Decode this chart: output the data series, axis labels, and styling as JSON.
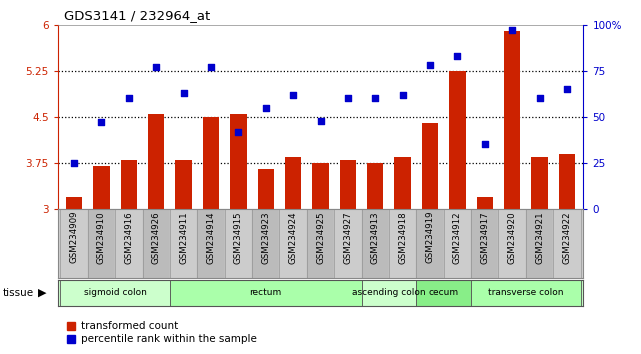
{
  "title": "GDS3141 / 232964_at",
  "samples": [
    "GSM234909",
    "GSM234910",
    "GSM234916",
    "GSM234926",
    "GSM234911",
    "GSM234914",
    "GSM234915",
    "GSM234923",
    "GSM234924",
    "GSM234925",
    "GSM234927",
    "GSM234913",
    "GSM234918",
    "GSM234919",
    "GSM234912",
    "GSM234917",
    "GSM234920",
    "GSM234921",
    "GSM234922"
  ],
  "bar_values": [
    3.2,
    3.7,
    3.8,
    4.55,
    3.8,
    4.5,
    4.55,
    3.65,
    3.85,
    3.75,
    3.8,
    3.75,
    3.85,
    4.4,
    5.25,
    3.2,
    5.9,
    3.85,
    3.9
  ],
  "dot_values": [
    25,
    47,
    60,
    77,
    63,
    77,
    42,
    55,
    62,
    48,
    60,
    60,
    62,
    78,
    83,
    35,
    97,
    60,
    65
  ],
  "bar_color": "#CC2200",
  "dot_color": "#0000CC",
  "ylim_left": [
    3.0,
    6.0
  ],
  "ylim_right": [
    0,
    100
  ],
  "yticks_left": [
    3.0,
    3.75,
    4.5,
    5.25,
    6.0
  ],
  "ytick_labels_left": [
    "3",
    "3.75",
    "4.5",
    "5.25",
    "6"
  ],
  "yticks_right": [
    0,
    25,
    50,
    75,
    100
  ],
  "ytick_labels_right": [
    "0",
    "25",
    "50",
    "75",
    "100%"
  ],
  "hlines": [
    3.75,
    4.5,
    5.25
  ],
  "tissue_groups": [
    {
      "label": "sigmoid colon",
      "start": 0,
      "end": 4,
      "color": "#ccffcc"
    },
    {
      "label": "rectum",
      "start": 4,
      "end": 11,
      "color": "#aaffaa"
    },
    {
      "label": "ascending colon",
      "start": 11,
      "end": 13,
      "color": "#ccffcc"
    },
    {
      "label": "cecum",
      "start": 13,
      "end": 15,
      "color": "#88ee88"
    },
    {
      "label": "transverse colon",
      "start": 15,
      "end": 19,
      "color": "#aaffaa"
    }
  ],
  "legend_bar_label": "transformed count",
  "legend_dot_label": "percentile rank within the sample",
  "tissue_label": "tissue",
  "bg_color": "#ffffff",
  "plot_bg": "#ffffff",
  "xtick_bg": "#d0d0d0",
  "xtick_border": "#888888"
}
